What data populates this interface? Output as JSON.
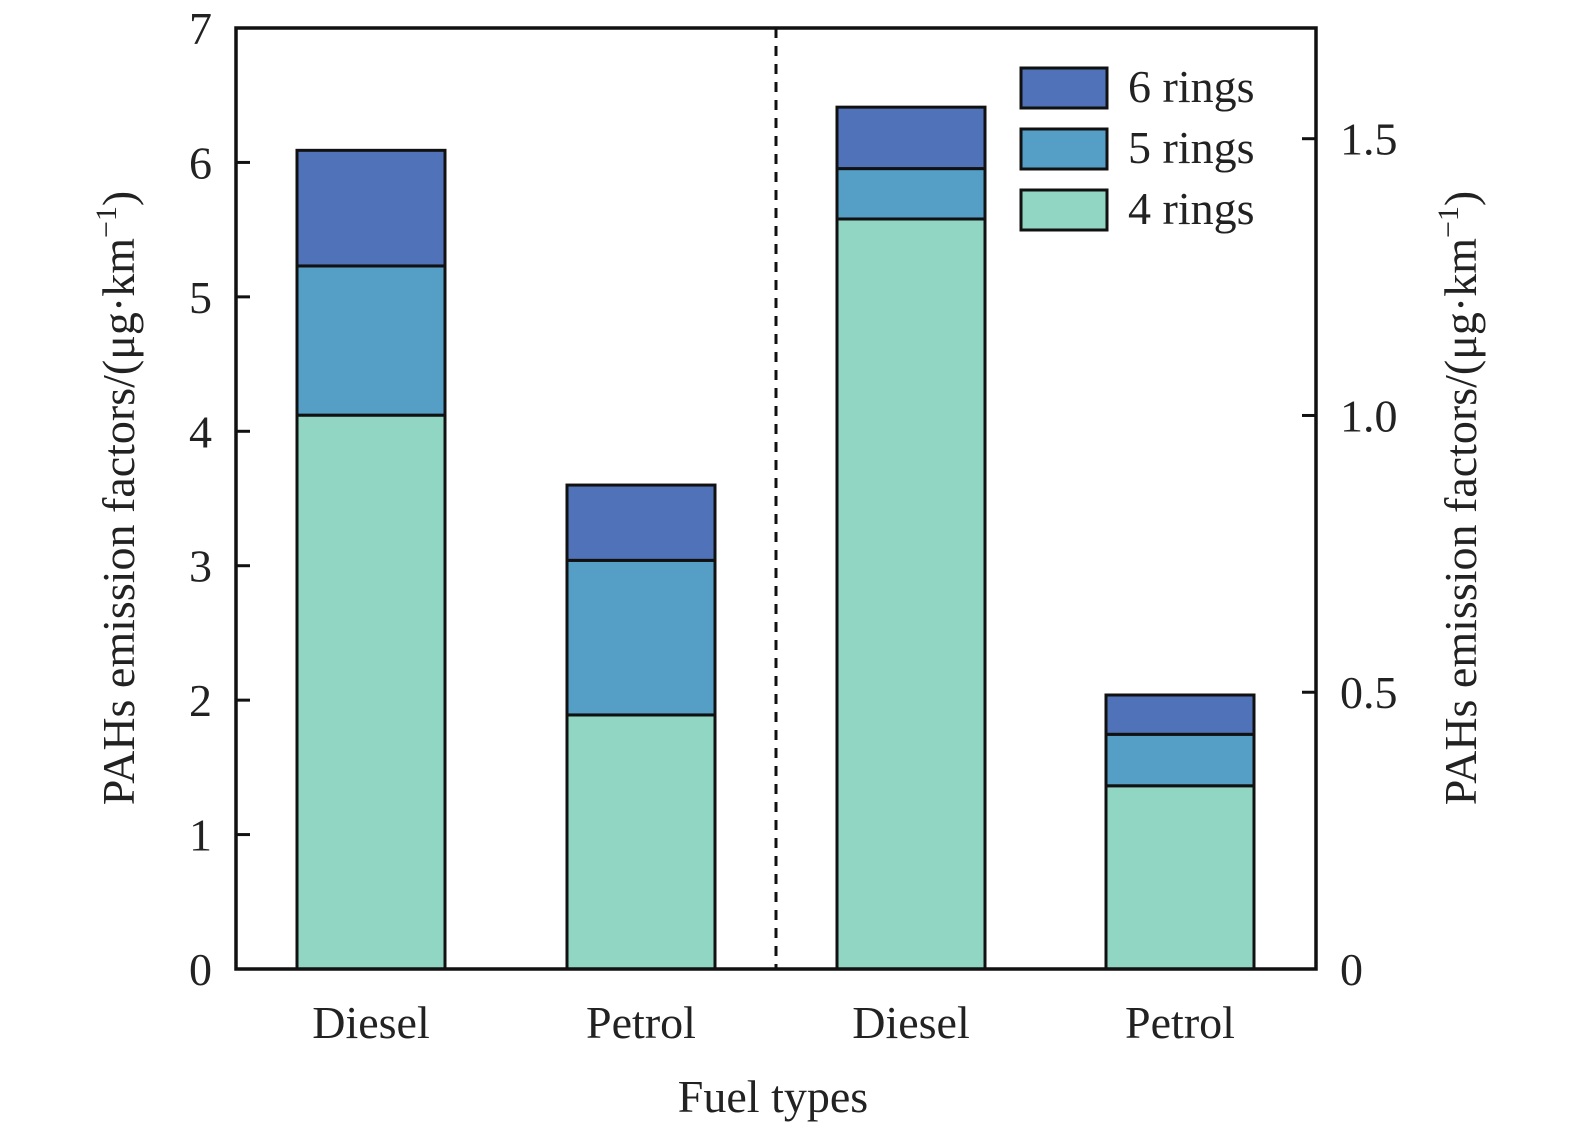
{
  "chart_data": {
    "type": "bar",
    "stacked": true,
    "categories": [
      "Diesel",
      "Petrol",
      "Diesel",
      "Petrol"
    ],
    "category_axis": "left,left,right,right",
    "xlabel": "Fuel types",
    "ylabel_left": "PAHs emission factors/(μg·km",
    "ylabel_right": "PAHs emission factors/(μg·km",
    "ylabel_superscript": "−1",
    "ylabel_close": ")",
    "ylim_left": [
      0,
      7
    ],
    "ylim_right": [
      0,
      1.7
    ],
    "yticks_left": [
      "0",
      "1",
      "2",
      "3",
      "4",
      "5",
      "6",
      "7"
    ],
    "yticks_right": [
      "0",
      "0.5",
      "1.0",
      "1.5"
    ],
    "yticks_right_values": [
      0,
      0.5,
      1.0,
      1.5
    ],
    "legend_position": "top-right",
    "divider": "dashed vertical line between groups",
    "grid": false,
    "series": [
      {
        "name": "4 rings",
        "color": "#91d5c3",
        "values": [
          4.12,
          1.89,
          1.355,
          0.331
        ]
      },
      {
        "name": "5 rings",
        "color": "#559fc6",
        "values": [
          1.11,
          1.15,
          0.091,
          0.093
        ]
      },
      {
        "name": "6 rings",
        "color": "#4f72b8",
        "values": [
          0.86,
          0.56,
          0.111,
          0.071
        ]
      }
    ],
    "legend_order": [
      "6 rings",
      "5 rings",
      "4 rings"
    ]
  }
}
